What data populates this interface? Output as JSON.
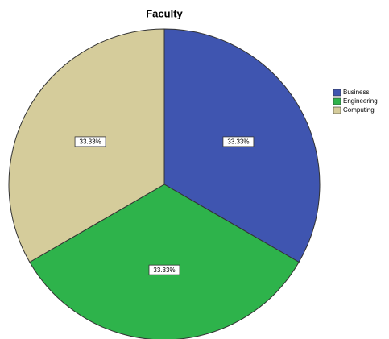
{
  "chart_data": {
    "type": "pie",
    "title": "Faculty",
    "categories": [
      "Business",
      "Engineering",
      "Computing"
    ],
    "values": [
      33.33,
      33.33,
      33.33
    ],
    "value_labels": [
      "33.33%",
      "33.33%",
      "33.33%"
    ],
    "colors": [
      "#3f55b0",
      "#2eb34b",
      "#d5cc9b"
    ],
    "legend": "right"
  }
}
